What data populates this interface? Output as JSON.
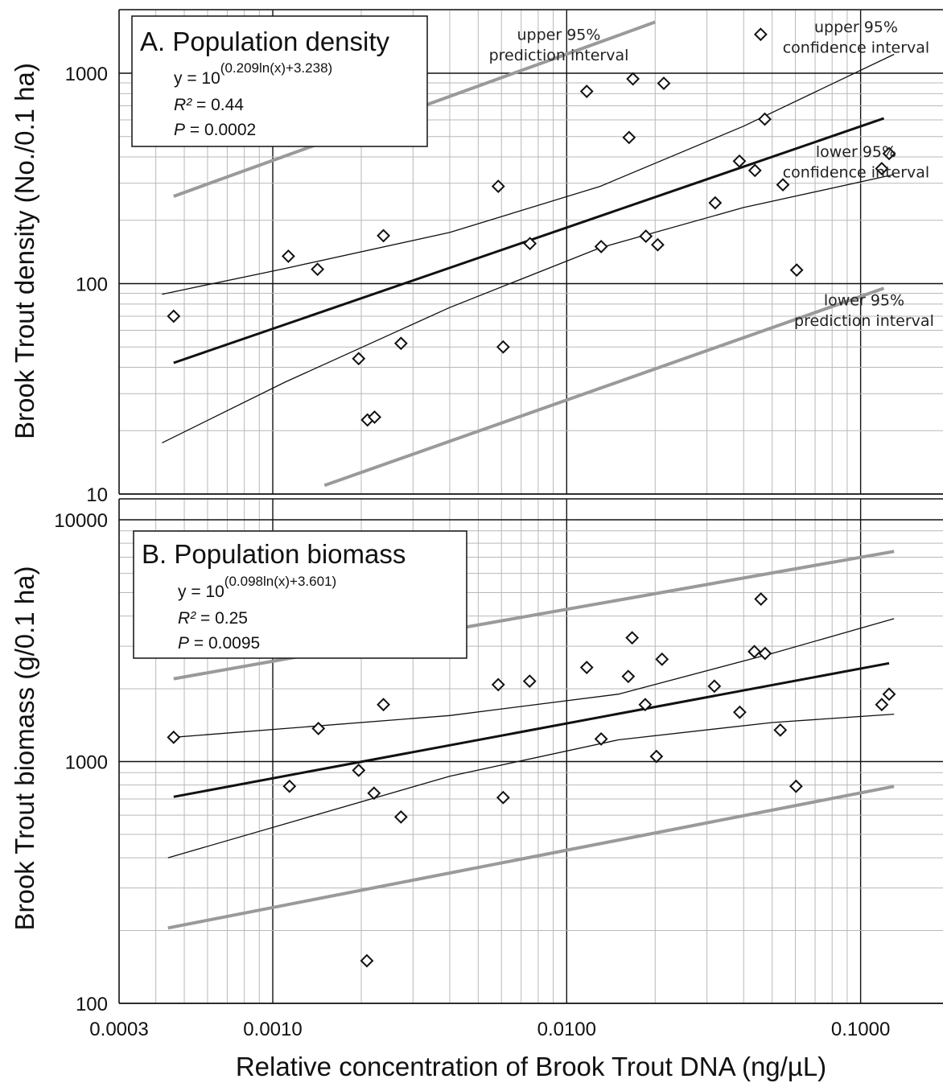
{
  "chart_data": [
    {
      "panel": "A",
      "type": "scatter",
      "title": "A. Population density",
      "equation": {
        "base": "y = 10",
        "exponent": "(0.209ln(x)+3.238)"
      },
      "r2": {
        "label": "R²",
        "value": " = 0.44"
      },
      "p": {
        "label": "P",
        "value": " = 0.0002"
      },
      "xlabel": "Relative concentration of Brook Trout DNA (ng/µL)",
      "ylabel": "Brook Trout density (No./0.1 ha)",
      "x_scale": "log",
      "y_scale": "log",
      "xlim": [
        0.0003,
        0.15
      ],
      "ylim": [
        10,
        2000
      ],
      "x_ticks": [
        "0.0003",
        "0.0010",
        "0.0100",
        "0.1000"
      ],
      "y_ticks": [
        "10",
        "100",
        "1000"
      ],
      "grid": true,
      "points": [
        {
          "x": 0.00046,
          "y": 70
        },
        {
          "x": 0.00113,
          "y": 135
        },
        {
          "x": 0.00142,
          "y": 117
        },
        {
          "x": 0.00196,
          "y": 44
        },
        {
          "x": 0.0021,
          "y": 22.5
        },
        {
          "x": 0.00222,
          "y": 23.2
        },
        {
          "x": 0.00238,
          "y": 169
        },
        {
          "x": 0.00273,
          "y": 52
        },
        {
          "x": 0.00585,
          "y": 290
        },
        {
          "x": 0.00608,
          "y": 50
        },
        {
          "x": 0.0075,
          "y": 155
        },
        {
          "x": 0.0117,
          "y": 820
        },
        {
          "x": 0.0131,
          "y": 150
        },
        {
          "x": 0.0163,
          "y": 495
        },
        {
          "x": 0.0168,
          "y": 940
        },
        {
          "x": 0.0186,
          "y": 168
        },
        {
          "x": 0.0204,
          "y": 153
        },
        {
          "x": 0.0214,
          "y": 895
        },
        {
          "x": 0.032,
          "y": 242
        },
        {
          "x": 0.0387,
          "y": 382
        },
        {
          "x": 0.0437,
          "y": 345
        },
        {
          "x": 0.0457,
          "y": 1530
        },
        {
          "x": 0.0472,
          "y": 605
        },
        {
          "x": 0.0544,
          "y": 295
        },
        {
          "x": 0.0606,
          "y": 116
        },
        {
          "x": 0.118,
          "y": 352
        },
        {
          "x": 0.125,
          "y": 415
        }
      ],
      "regression_line": [
        [
          0.00046,
          42
        ],
        [
          0.12,
          610
        ]
      ],
      "confidence_upper": [
        [
          0.00042,
          89
        ],
        [
          0.0011,
          118
        ],
        [
          0.004,
          175
        ],
        [
          0.013,
          290
        ],
        [
          0.04,
          560
        ],
        [
          0.13,
          1230
        ]
      ],
      "confidence_lower": [
        [
          0.00042,
          17.5
        ],
        [
          0.0011,
          34
        ],
        [
          0.004,
          77
        ],
        [
          0.013,
          148
        ],
        [
          0.04,
          230
        ],
        [
          0.13,
          330
        ]
      ],
      "prediction_upper": [
        [
          0.00046,
          260
        ],
        [
          0.02,
          1750
        ]
      ],
      "prediction_lower": [
        [
          0.0015,
          11
        ],
        [
          0.12,
          95
        ]
      ],
      "annotations": [
        {
          "text": "upper 95%",
          "x": 0.0094,
          "y": 1440,
          "dx": 0
        },
        {
          "text": "prediction interval",
          "x": 0.0094,
          "y": 1150,
          "dx": 0
        },
        {
          "text": "upper 95%",
          "x": 0.075,
          "y": 1570,
          "dx": 40
        },
        {
          "text": "confidence interval",
          "x": 0.075,
          "y": 1250,
          "dx": 40
        },
        {
          "text": "lower 95%",
          "x": 0.075,
          "y": 400,
          "dx": 40
        },
        {
          "text": "confidence interval",
          "x": 0.075,
          "y": 320,
          "dx": 40
        },
        {
          "text": "lower 95%",
          "x": 0.075,
          "y": 79,
          "dx": 50
        },
        {
          "text": "prediction interval",
          "x": 0.075,
          "y": 63,
          "dx": 50
        }
      ]
    },
    {
      "panel": "B",
      "type": "scatter",
      "title": "B. Population biomass",
      "equation": {
        "base": "y = 10",
        "exponent": "(0.098ln(x)+3.601)"
      },
      "r2": {
        "label": "R²",
        "value": " = 0.25"
      },
      "p": {
        "label": "P",
        "value": " = 0.0095"
      },
      "xlabel": "Relative concentration of Brook Trout DNA (ng/µL)",
      "ylabel": "Brook Trout biomass (g/0.1 ha)",
      "x_scale": "log",
      "y_scale": "log",
      "xlim": [
        0.0003,
        0.15
      ],
      "ylim": [
        100,
        10000
      ],
      "x_ticks": [
        "0.0003",
        "0.0010",
        "0.0100",
        "0.1000"
      ],
      "y_ticks": [
        "100",
        "1000",
        "10000"
      ],
      "grid": true,
      "points": [
        {
          "x": 0.00046,
          "y": 1260
        },
        {
          "x": 0.00114,
          "y": 790
        },
        {
          "x": 0.00143,
          "y": 1370
        },
        {
          "x": 0.00196,
          "y": 920
        },
        {
          "x": 0.00209,
          "y": 150
        },
        {
          "x": 0.00221,
          "y": 740
        },
        {
          "x": 0.00238,
          "y": 1720
        },
        {
          "x": 0.00273,
          "y": 590
        },
        {
          "x": 0.00585,
          "y": 2080
        },
        {
          "x": 0.00608,
          "y": 710
        },
        {
          "x": 0.00748,
          "y": 2150
        },
        {
          "x": 0.0117,
          "y": 2450
        },
        {
          "x": 0.0131,
          "y": 1240
        },
        {
          "x": 0.0162,
          "y": 2250
        },
        {
          "x": 0.0167,
          "y": 3250
        },
        {
          "x": 0.0185,
          "y": 1720
        },
        {
          "x": 0.0202,
          "y": 1050
        },
        {
          "x": 0.0211,
          "y": 2650
        },
        {
          "x": 0.0318,
          "y": 2050
        },
        {
          "x": 0.0388,
          "y": 1600
        },
        {
          "x": 0.0435,
          "y": 2850
        },
        {
          "x": 0.0458,
          "y": 4700
        },
        {
          "x": 0.0473,
          "y": 2800
        },
        {
          "x": 0.0533,
          "y": 1350
        },
        {
          "x": 0.0603,
          "y": 790
        },
        {
          "x": 0.118,
          "y": 1720
        },
        {
          "x": 0.125,
          "y": 1900
        }
      ],
      "regression_line": [
        [
          0.00046,
          715
        ],
        [
          0.125,
          2550
        ]
      ],
      "confidence_upper": [
        [
          0.00046,
          1260
        ],
        [
          0.004,
          1550
        ],
        [
          0.015,
          1900
        ],
        [
          0.05,
          2800
        ],
        [
          0.13,
          3900
        ]
      ],
      "confidence_lower": [
        [
          0.00044,
          400
        ],
        [
          0.004,
          870
        ],
        [
          0.015,
          1230
        ],
        [
          0.05,
          1450
        ],
        [
          0.13,
          1570
        ]
      ],
      "prediction_upper": [
        [
          0.00046,
          2200
        ],
        [
          0.13,
          7400
        ]
      ],
      "prediction_lower": [
        [
          0.00044,
          205
        ],
        [
          0.13,
          790
        ]
      ],
      "annotations": []
    }
  ]
}
